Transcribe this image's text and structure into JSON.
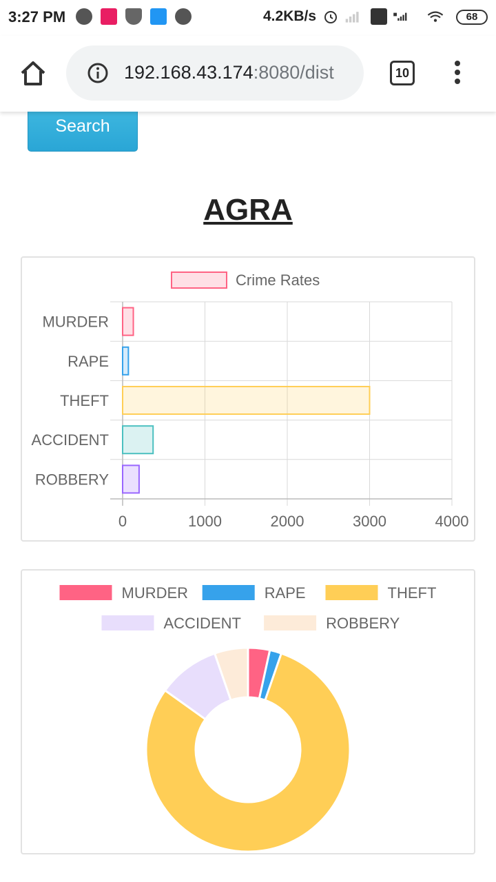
{
  "status_bar": {
    "time": "3:27 PM",
    "speed": "4.2KB/s",
    "battery": "68"
  },
  "browser": {
    "url_host": "192.168.43.174",
    "url_rest": ":8080/dist",
    "tab_count": "10"
  },
  "page": {
    "search_label": "Search",
    "city": "AGRA"
  },
  "colors": {
    "murder": "#ff6384",
    "rape": "#36a2eb",
    "theft": "#ffce56",
    "accident": "#4bc0c0",
    "robbery": "#9966ff",
    "accident_pie": "#e8defc",
    "robbery_pie": "#fdebd9"
  },
  "chart_data": [
    {
      "type": "bar",
      "orientation": "horizontal",
      "legend": "Crime Rates",
      "legend_position": "top",
      "categories": [
        "MURDER",
        "RAPE",
        "THEFT",
        "ACCIDENT",
        "ROBBERY"
      ],
      "values": [
        130,
        70,
        3000,
        370,
        200
      ],
      "xlim": [
        0,
        4000
      ],
      "xticks": [
        "0",
        "1000",
        "2000",
        "3000",
        "4000"
      ],
      "grid": true
    },
    {
      "type": "pie",
      "style": "doughnut",
      "legend_position": "top",
      "labels": [
        "MURDER",
        "RAPE",
        "THEFT",
        "ACCIDENT",
        "ROBBERY"
      ],
      "values": [
        130,
        70,
        3000,
        370,
        200
      ]
    }
  ]
}
